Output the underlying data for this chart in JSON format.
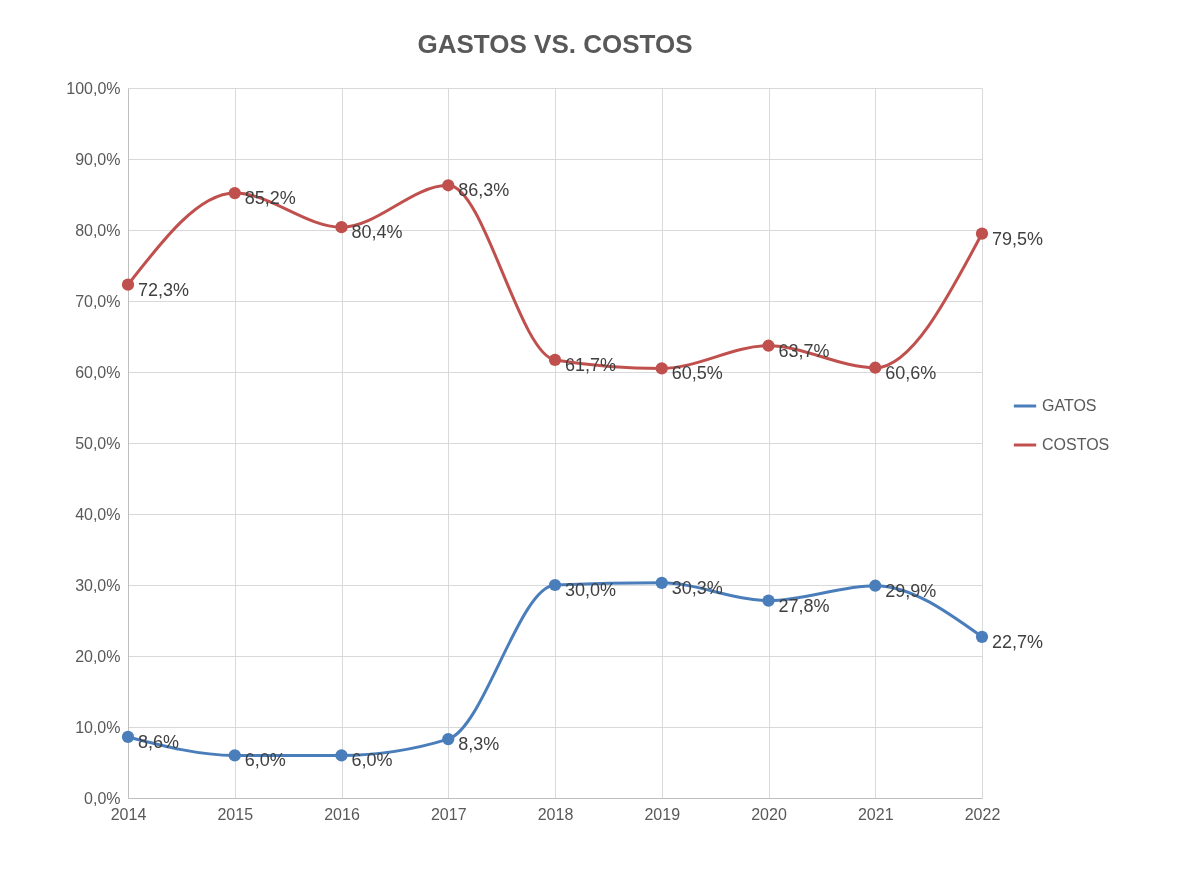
{
  "chart_data": {
    "type": "line",
    "title": "GASTOS VS. COSTOS",
    "categories": [
      "2014",
      "2015",
      "2016",
      "2017",
      "2018",
      "2019",
      "2020",
      "2021",
      "2022"
    ],
    "series": [
      {
        "name": "GATOS",
        "color": "#4a7ebb",
        "values": [
          8.6,
          6.0,
          6.0,
          8.3,
          30.0,
          30.3,
          27.8,
          29.9,
          22.7
        ],
        "value_labels": [
          "8,6%",
          "6,0%",
          "6,0%",
          "8,3%",
          "30,0%",
          "30,3%",
          "27,8%",
          "29,9%",
          "22,7%"
        ]
      },
      {
        "name": "COSTOS",
        "color": "#c0504d",
        "values": [
          72.3,
          85.2,
          80.4,
          86.3,
          61.7,
          60.5,
          63.7,
          60.6,
          79.5
        ],
        "value_labels": [
          "72,3%",
          "85,2%",
          "80,4%",
          "86,3%",
          "61,7%",
          "60,5%",
          "63,7%",
          "60,6%",
          "79,5%"
        ]
      }
    ],
    "ylim": [
      0,
      100
    ],
    "yticks": [
      {
        "value": 0,
        "label": "0,0%"
      },
      {
        "value": 10,
        "label": "10,0%"
      },
      {
        "value": 20,
        "label": "20,0%"
      },
      {
        "value": 30,
        "label": "30,0%"
      },
      {
        "value": 40,
        "label": "40,0%"
      },
      {
        "value": 50,
        "label": "50,0%"
      },
      {
        "value": 60,
        "label": "60,0%"
      },
      {
        "value": 70,
        "label": "70,0%"
      },
      {
        "value": 80,
        "label": "80,0%"
      },
      {
        "value": 90,
        "label": "90,0%"
      },
      {
        "value": 100,
        "label": "100,0%"
      }
    ],
    "grid": true,
    "legend": "right",
    "marker": "circle",
    "line_style": "solid"
  }
}
